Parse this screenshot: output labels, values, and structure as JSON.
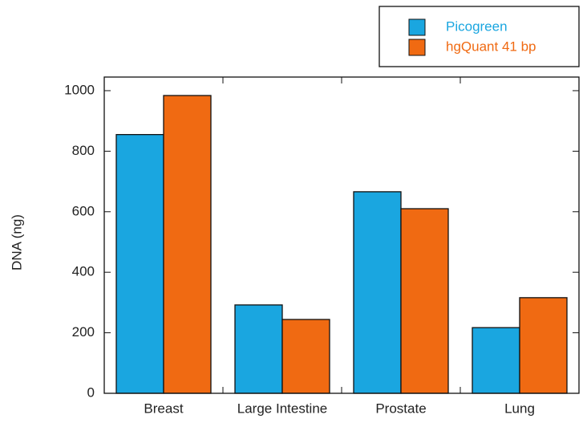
{
  "chart_data": {
    "type": "bar",
    "y_label": "DNA (ng)",
    "categories": [
      "Breast",
      "Large Intestine",
      "Prostate",
      "Lung"
    ],
    "series": [
      {
        "name": "Picogreen",
        "color": "#1aa6e0",
        "values": [
          855,
          292,
          666,
          217
        ]
      },
      {
        "name": "hgQuant 41 bp",
        "color": "#f06a12",
        "values": [
          984,
          244,
          610,
          316
        ]
      }
    ],
    "ylim": [
      0,
      1045
    ],
    "yticks": [
      0,
      200,
      400,
      600,
      800,
      1000
    ],
    "grid": false,
    "legend": "top-right"
  }
}
